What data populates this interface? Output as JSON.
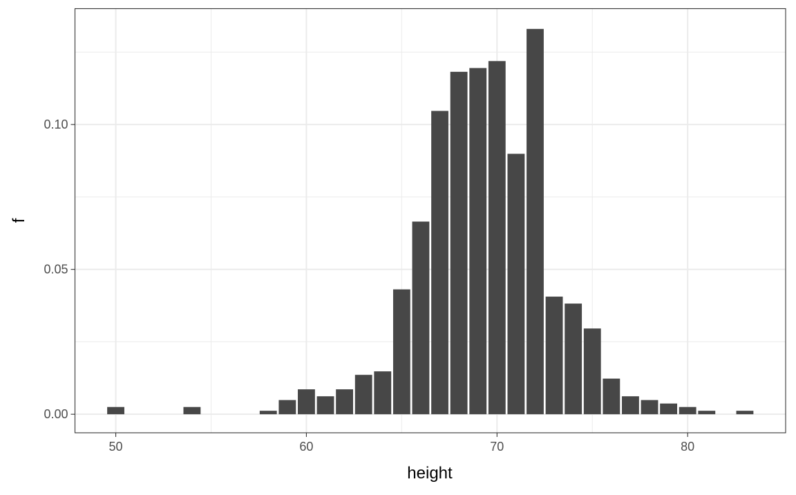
{
  "chart_data": {
    "type": "bar",
    "title": "",
    "xlabel": "height",
    "ylabel": "f",
    "xlim": [
      47.86,
      85.14
    ],
    "ylim": [
      -0.0064,
      0.14
    ],
    "grid": true,
    "x_ticks": [
      50,
      60,
      70,
      80
    ],
    "x_tick_labels": [
      "50",
      "60",
      "70",
      "80"
    ],
    "y_ticks": [
      0,
      0.05,
      0.1
    ],
    "y_tick_labels": [
      "0.00",
      "0.05",
      "0.10"
    ],
    "bar_color": "#474747",
    "x": [
      50,
      54,
      58,
      59,
      60,
      61,
      62,
      63,
      64,
      65,
      66,
      67,
      68,
      69,
      70,
      71,
      72,
      73,
      74,
      75,
      76,
      77,
      78,
      79,
      80,
      81,
      83
    ],
    "values": [
      0.0025,
      0.0025,
      0.0012,
      0.0049,
      0.0086,
      0.0062,
      0.0086,
      0.0136,
      0.0148,
      0.0431,
      0.0665,
      0.1047,
      0.1182,
      0.1195,
      0.1219,
      0.0899,
      0.133,
      0.0406,
      0.0382,
      0.0296,
      0.0123,
      0.0062,
      0.0049,
      0.0037,
      0.0025,
      0.0012,
      0.0012
    ]
  }
}
